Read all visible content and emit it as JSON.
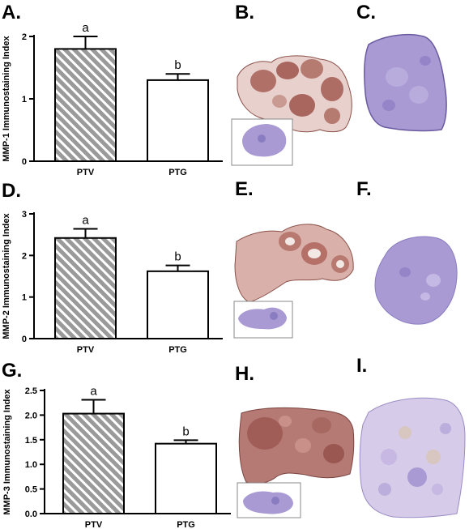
{
  "panels": {
    "A": "A.",
    "B": "B.",
    "C": "C.",
    "D": "D.",
    "E": "E.",
    "F": "F.",
    "G": "G.",
    "H": "H.",
    "I": "I."
  },
  "colors": {
    "hatch_bar_fill": "#9a9a9a",
    "hatch_stripe": "#ffffff",
    "open_bar_fill": "#ffffff",
    "ihc_brown": "#a8665e",
    "ihc_background_pink": "#e9cfcd",
    "hematoxylin_purple": "#a99ad4"
  },
  "chart_data": [
    {
      "type": "bar",
      "categories": [
        "PTV",
        "PTG"
      ],
      "values": [
        1.8,
        1.3
      ],
      "errors": [
        0.2,
        0.1
      ],
      "letters": [
        "a",
        "b"
      ],
      "ylabel": "MMP-1 Immunostaining Index",
      "ylim": [
        0,
        2
      ],
      "yticks": [
        0,
        1,
        2
      ],
      "ytick_labels": [
        "0",
        "1",
        "2"
      ],
      "grid": false,
      "legend": "none"
    },
    {
      "type": "bar",
      "categories": [
        "PTV",
        "PTG"
      ],
      "values": [
        2.42,
        1.62
      ],
      "errors": [
        0.22,
        0.14
      ],
      "letters": [
        "a",
        "b"
      ],
      "ylabel": "MMP-2 Immunostaining Index",
      "ylim": [
        0,
        3
      ],
      "yticks": [
        0,
        1,
        2,
        3
      ],
      "ytick_labels": [
        "0",
        "1",
        "2",
        "3"
      ],
      "grid": false,
      "legend": "none"
    },
    {
      "type": "bar",
      "categories": [
        "PTV",
        "PTG"
      ],
      "values": [
        2.03,
        1.42
      ],
      "errors": [
        0.28,
        0.07
      ],
      "letters": [
        "a",
        "b"
      ],
      "ylabel": "MMP-3 Immunostaining Index",
      "ylim": [
        0,
        2.5
      ],
      "yticks": [
        0,
        0.5,
        1,
        1.5,
        2,
        2.5
      ],
      "ytick_labels": [
        "0.0",
        "0.5",
        "1.0",
        "1.5",
        "2.0",
        "2.5"
      ],
      "grid": false,
      "legend": "none"
    }
  ]
}
